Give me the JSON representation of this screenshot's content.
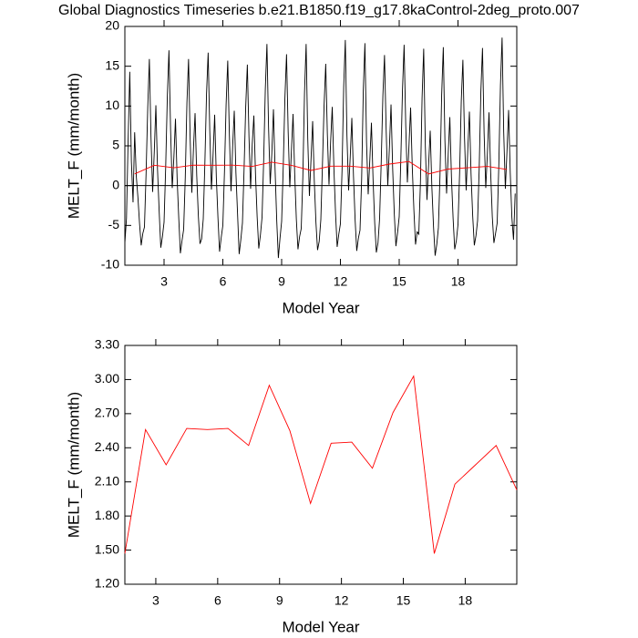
{
  "chart_data": [
    {
      "type": "line",
      "title": "Global Diagnostics Timeseries b.e21.B1850.f19_g17.8kaControl-2deg_proto.007",
      "xlabel": "Model Year",
      "ylabel": "MELT_F (mm/month)",
      "xlim": [
        1,
        21
      ],
      "xticks": [
        3,
        6,
        9,
        12,
        15,
        18
      ],
      "ylim": [
        -10,
        20
      ],
      "yticks": [
        -10,
        -5,
        0,
        5,
        10,
        15,
        20
      ],
      "hline": 0,
      "series": [
        {
          "color": "#000000",
          "x": [
            1,
            1.083,
            1.167,
            1.25,
            1.333,
            1.417,
            1.5,
            1.583,
            1.667,
            1.75,
            1.833,
            1.917,
            2,
            2.083,
            2.167,
            2.25,
            2.333,
            2.417,
            2.5,
            2.583,
            2.667,
            2.75,
            2.833,
            2.917,
            3,
            3.083,
            3.167,
            3.25,
            3.333,
            3.417,
            3.5,
            3.583,
            3.667,
            3.75,
            3.833,
            3.917,
            4,
            4.083,
            4.167,
            4.25,
            4.333,
            4.417,
            4.5,
            4.583,
            4.667,
            4.75,
            4.833,
            4.917,
            5,
            5.083,
            5.167,
            5.25,
            5.333,
            5.417,
            5.5,
            5.583,
            5.667,
            5.75,
            5.833,
            5.917,
            6,
            6.083,
            6.167,
            6.25,
            6.333,
            6.417,
            6.5,
            6.583,
            6.667,
            6.75,
            6.833,
            6.917,
            7,
            7.083,
            7.167,
            7.25,
            7.333,
            7.417,
            7.5,
            7.583,
            7.667,
            7.75,
            7.833,
            7.917,
            8,
            8.083,
            8.167,
            8.25,
            8.333,
            8.417,
            8.5,
            8.583,
            8.667,
            8.75,
            8.833,
            8.917,
            9,
            9.083,
            9.167,
            9.25,
            9.333,
            9.417,
            9.5,
            9.583,
            9.667,
            9.75,
            9.833,
            9.917,
            10,
            10.083,
            10.167,
            10.25,
            10.333,
            10.417,
            10.5,
            10.583,
            10.667,
            10.75,
            10.833,
            10.917,
            11,
            11.083,
            11.167,
            11.25,
            11.333,
            11.417,
            11.5,
            11.583,
            11.667,
            11.75,
            11.833,
            11.917,
            12,
            12.083,
            12.167,
            12.25,
            12.333,
            12.417,
            12.5,
            12.583,
            12.667,
            12.75,
            12.833,
            12.917,
            13,
            13.083,
            13.167,
            13.25,
            13.333,
            13.417,
            13.5,
            13.583,
            13.667,
            13.75,
            13.833,
            13.917,
            14,
            14.083,
            14.167,
            14.25,
            14.333,
            14.417,
            14.5,
            14.583,
            14.667,
            14.75,
            14.833,
            14.917,
            15,
            15.083,
            15.167,
            15.25,
            15.333,
            15.417,
            15.5,
            15.583,
            15.667,
            15.75,
            15.833,
            15.917,
            16,
            16.083,
            16.167,
            16.25,
            16.333,
            16.417,
            16.5,
            16.583,
            16.667,
            16.75,
            16.833,
            16.917,
            17,
            17.083,
            17.167,
            17.25,
            17.333,
            17.417,
            17.5,
            17.583,
            17.667,
            17.75,
            17.833,
            17.917,
            18,
            18.083,
            18.167,
            18.25,
            18.333,
            18.417,
            18.5,
            18.583,
            18.667,
            18.75,
            18.833,
            18.917,
            19,
            19.083,
            19.167,
            19.25,
            19.333,
            19.417,
            19.5,
            19.583,
            19.667,
            19.75,
            19.833,
            19.917,
            20,
            20.083,
            20.167,
            20.25,
            20.333,
            20.417,
            20.5,
            20.583,
            20.667,
            20.75,
            20.833,
            20.917
          ],
          "values": [
            -7.2,
            -4.1,
            5.8,
            14.3,
            3.0,
            -2.1,
            6.7,
            1.2,
            -1.5,
            -4.8,
            -7.5,
            -6.0,
            -5.2,
            1.5,
            9.8,
            15.9,
            6.1,
            -0.8,
            4.2,
            10.1,
            2.0,
            -3.2,
            -7.8,
            -6.4,
            -4.6,
            2.3,
            11.2,
            17.0,
            7.0,
            -0.3,
            3.5,
            8.4,
            0.9,
            -4.1,
            -8.5,
            -6.9,
            -5.5,
            1.0,
            10.4,
            15.9,
            5.8,
            -0.9,
            4.6,
            9.1,
            1.3,
            -3.8,
            -7.3,
            -6.7,
            -4.2,
            2.8,
            11.5,
            16.7,
            6.9,
            -0.5,
            3.8,
            8.9,
            1.1,
            -4.0,
            -8.3,
            -6.5,
            -5.0,
            1.7,
            10.2,
            15.7,
            6.4,
            -0.7,
            4.9,
            9.4,
            1.6,
            -3.5,
            -8.6,
            -6.8,
            -4.7,
            2.0,
            9.9,
            15.2,
            6.2,
            -0.4,
            5.2,
            8.8,
            1.4,
            -3.9,
            -7.9,
            -6.2,
            -4.0,
            3.1,
            12.1,
            17.8,
            7.3,
            0.2,
            4.1,
            9.6,
            1.9,
            -4.4,
            -9.1,
            -6.6,
            -4.5,
            2.4,
            11.0,
            16.5,
            6.8,
            -0.2,
            4.4,
            9.0,
            1.5,
            -4.2,
            -8.0,
            -6.4,
            -5.4,
            1.1,
            11.6,
            17.8,
            5.9,
            -1.3,
            3.3,
            8.1,
            0.6,
            -4.6,
            -8.1,
            -7.0,
            -4.3,
            2.6,
            10.1,
            15.3,
            6.5,
            0.1,
            5.5,
            9.9,
            2.2,
            -3.4,
            -7.7,
            -6.1,
            -4.8,
            1.9,
            12.4,
            18.3,
            6.3,
            -0.6,
            3.6,
            8.5,
            1.2,
            -4.3,
            -8.2,
            -6.6,
            -5.6,
            0.8,
            11.9,
            17.9,
            5.4,
            -1.1,
            3.2,
            7.9,
            0.7,
            -4.7,
            -8.4,
            -7.2,
            -4.1,
            3.0,
            11.3,
            16.4,
            7.1,
            0.0,
            4.8,
            10.2,
            2.1,
            -3.6,
            -7.6,
            -5.9,
            -3.9,
            3.3,
            12.0,
            17.7,
            7.6,
            0.4,
            5.1,
            9.8,
            2.3,
            -3.1,
            -7.4,
            -5.8,
            -6.1,
            0.4,
            11.0,
            17.2,
            5.0,
            -1.8,
            2.6,
            6.9,
            -0.2,
            -5.1,
            -8.8,
            -7.4,
            -5.3,
            1.4,
            11.4,
            17.4,
            5.7,
            -1.0,
            3.9,
            8.6,
            1.0,
            -4.1,
            -8.0,
            -6.9,
            -4.9,
            1.6,
            10.6,
            15.8,
            6.0,
            -0.6,
            4.5,
            9.3,
            1.4,
            -3.8,
            -7.5,
            -6.3,
            -4.4,
            2.2,
            11.8,
            17.3,
            6.6,
            -0.3,
            4.0,
            9.2,
            1.7,
            -3.9,
            -7.2,
            -6.0,
            -4.7,
            2.5,
            12.6,
            18.6,
            6.7,
            -0.4,
            4.3,
            9.5,
            1.6,
            -4.0,
            -6.8,
            -1.0
          ]
        },
        {
          "color": "#ff0000",
          "x": [
            1.5,
            2.5,
            3.5,
            4.5,
            5.5,
            6.5,
            7.5,
            8.5,
            9.5,
            10.5,
            11.5,
            12.5,
            13.5,
            14.5,
            15.5,
            16.5,
            17.5,
            18.5,
            19.5,
            20.5
          ],
          "values": [
            1.47,
            2.56,
            2.25,
            2.57,
            2.56,
            2.57,
            2.42,
            2.95,
            2.55,
            1.91,
            2.44,
            2.45,
            2.22,
            2.71,
            3.03,
            1.47,
            2.08,
            2.25,
            2.42,
            2.03
          ]
        }
      ]
    },
    {
      "type": "line",
      "xlabel": "Model Year",
      "ylabel": "MELT_F (mm/month)",
      "xlim": [
        1.5,
        20.5
      ],
      "xticks": [
        3,
        6,
        9,
        12,
        15,
        18
      ],
      "ylim": [
        1.2,
        3.3
      ],
      "yticks": [
        {
          "value": 1.2,
          "label": "1.20"
        },
        {
          "value": 1.5,
          "label": "1.50"
        },
        {
          "value": 1.8,
          "label": "1.80"
        },
        {
          "value": 2.1,
          "label": "2.10"
        },
        {
          "value": 2.4,
          "label": "2.40"
        },
        {
          "value": 2.7,
          "label": "2.70"
        },
        {
          "value": 3.0,
          "label": "3.00"
        },
        {
          "value": 3.3,
          "label": "3.30"
        }
      ],
      "series": [
        {
          "color": "#ff0000",
          "x": [
            1.5,
            2.5,
            3.5,
            4.5,
            5.5,
            6.5,
            7.5,
            8.5,
            9.5,
            10.5,
            11.5,
            12.5,
            13.5,
            14.5,
            15.5,
            16.5,
            17.5,
            18.5,
            19.5,
            20.5
          ],
          "values": [
            1.47,
            2.56,
            2.25,
            2.57,
            2.56,
            2.57,
            2.42,
            2.95,
            2.55,
            1.91,
            2.44,
            2.45,
            2.22,
            2.71,
            3.03,
            1.47,
            2.08,
            2.25,
            2.42,
            2.03
          ]
        }
      ]
    }
  ]
}
